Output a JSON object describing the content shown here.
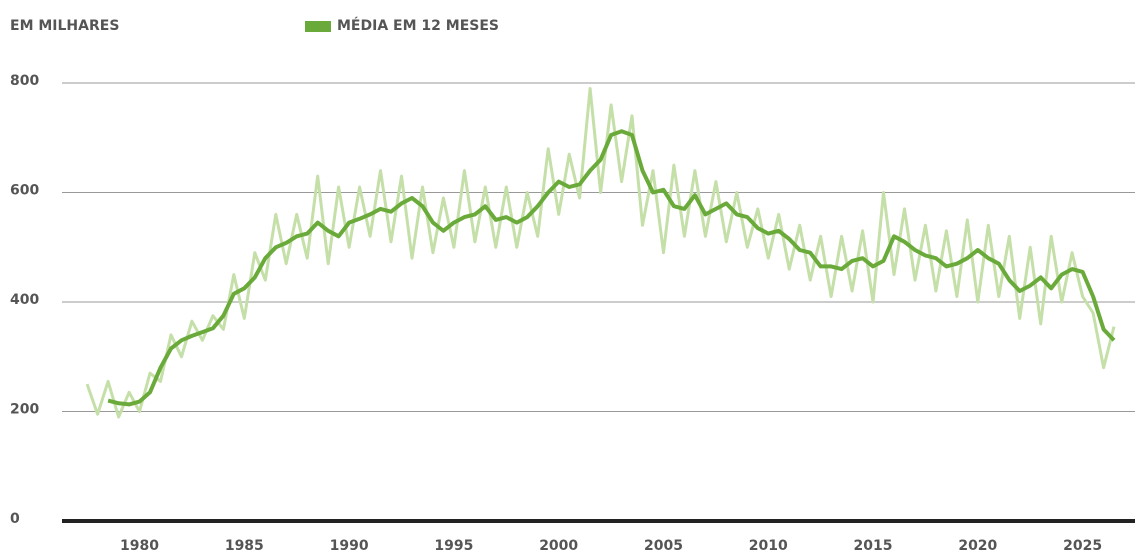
{
  "chart_data": {
    "type": "line",
    "y_label": "EM MILHARES",
    "xlim": [
      1976.3,
      2027.5
    ],
    "xticks": [
      1980,
      1985,
      1990,
      1995,
      2000,
      2005,
      2010,
      2015,
      2020,
      2025
    ],
    "ylim": [
      0,
      800
    ],
    "yticks": [
      0,
      200,
      400,
      600,
      800
    ],
    "grid": true,
    "legend": "top",
    "series": [
      {
        "color": "#c5dfa8",
        "width": 3,
        "x": [
          1977.5,
          1978,
          1978.5,
          1979,
          1979.5,
          1980,
          1980.5,
          1981,
          1981.5,
          1982,
          1982.5,
          1983,
          1983.5,
          1984,
          1984.5,
          1985,
          1985.5,
          1986,
          1986.5,
          1987,
          1987.5,
          1988,
          1988.5,
          1989,
          1989.5,
          1990,
          1990.5,
          1991,
          1991.5,
          1992,
          1992.5,
          1993,
          1993.5,
          1994,
          1994.5,
          1995,
          1995.5,
          1996,
          1996.5,
          1997,
          1997.5,
          1998,
          1998.5,
          1999,
          1999.5,
          2000,
          2000.5,
          2001,
          2001.5,
          2002,
          2002.5,
          2003,
          2003.5,
          2004,
          2004.5,
          2005,
          2005.5,
          2006,
          2006.5,
          2007,
          2007.5,
          2008,
          2008.5,
          2009,
          2009.5,
          2010,
          2010.5,
          2011,
          2011.5,
          2012,
          2012.5,
          2013,
          2013.5,
          2014,
          2014.5,
          2015,
          2015.5,
          2016,
          2016.5,
          2017,
          2017.5,
          2018,
          2018.5,
          2019,
          2019.5,
          2020,
          2020.5,
          2021,
          2021.5,
          2022,
          2022.5,
          2023,
          2023.5,
          2024,
          2024.5,
          2025,
          2025.5,
          2026,
          2026.5
        ],
        "values": [
          250,
          195,
          255,
          190,
          235,
          200,
          270,
          255,
          340,
          300,
          365,
          330,
          375,
          350,
          450,
          370,
          490,
          440,
          560,
          470,
          560,
          480,
          630,
          470,
          610,
          500,
          610,
          520,
          640,
          510,
          630,
          480,
          610,
          490,
          590,
          500,
          640,
          510,
          610,
          500,
          610,
          500,
          600,
          520,
          680,
          560,
          670,
          590,
          790,
          600,
          760,
          620,
          740,
          540,
          640,
          490,
          650,
          520,
          640,
          520,
          620,
          510,
          600,
          500,
          570,
          480,
          560,
          460,
          540,
          440,
          520,
          410,
          520,
          420,
          530,
          400,
          600,
          450,
          570,
          440,
          540,
          420,
          530,
          410,
          550,
          400,
          540,
          410,
          520,
          370,
          500,
          360,
          520,
          400,
          490,
          410,
          380,
          280,
          355
        ]
      },
      {
        "name": "MÉDIA EM 12 MESES",
        "color": "#6aaa3a",
        "width": 4,
        "x": [
          1978.5,
          1979,
          1979.5,
          1980,
          1980.5,
          1981,
          1981.5,
          1982,
          1982.5,
          1983,
          1983.5,
          1984,
          1984.5,
          1985,
          1985.5,
          1986,
          1986.5,
          1987,
          1987.5,
          1988,
          1988.5,
          1989,
          1989.5,
          1990,
          1990.5,
          1991,
          1991.5,
          1992,
          1992.5,
          1993,
          1993.5,
          1994,
          1994.5,
          1995,
          1995.5,
          1996,
          1996.5,
          1997,
          1997.5,
          1998,
          1998.5,
          1999,
          1999.5,
          2000,
          2000.5,
          2001,
          2001.5,
          2002,
          2002.5,
          2003,
          2003.5,
          2004,
          2004.5,
          2005,
          2005.5,
          2006,
          2006.5,
          2007,
          2007.5,
          2008,
          2008.5,
          2009,
          2009.5,
          2010,
          2010.5,
          2011,
          2011.5,
          2012,
          2012.5,
          2013,
          2013.5,
          2014,
          2014.5,
          2015,
          2015.5,
          2016,
          2016.5,
          2017,
          2017.5,
          2018,
          2018.5,
          2019,
          2019.5,
          2020,
          2020.5,
          2021,
          2021.5,
          2022,
          2022.5,
          2023,
          2023.5,
          2024,
          2024.5,
          2025,
          2025.5,
          2026,
          2026.5
        ],
        "values": [
          220,
          215,
          213,
          218,
          235,
          280,
          315,
          330,
          338,
          345,
          352,
          375,
          415,
          425,
          445,
          480,
          500,
          508,
          520,
          525,
          545,
          530,
          520,
          545,
          552,
          560,
          570,
          565,
          580,
          590,
          575,
          545,
          530,
          545,
          555,
          560,
          575,
          550,
          555,
          545,
          555,
          575,
          600,
          620,
          610,
          615,
          640,
          660,
          705,
          712,
          705,
          640,
          600,
          605,
          575,
          570,
          595,
          560,
          570,
          580,
          560,
          555,
          535,
          525,
          530,
          515,
          495,
          490,
          465,
          465,
          460,
          475,
          480,
          465,
          475,
          520,
          510,
          495,
          485,
          480,
          465,
          470,
          480,
          495,
          480,
          470,
          440,
          420,
          430,
          445,
          425,
          450,
          460,
          455,
          410,
          350,
          330
        ]
      }
    ]
  }
}
